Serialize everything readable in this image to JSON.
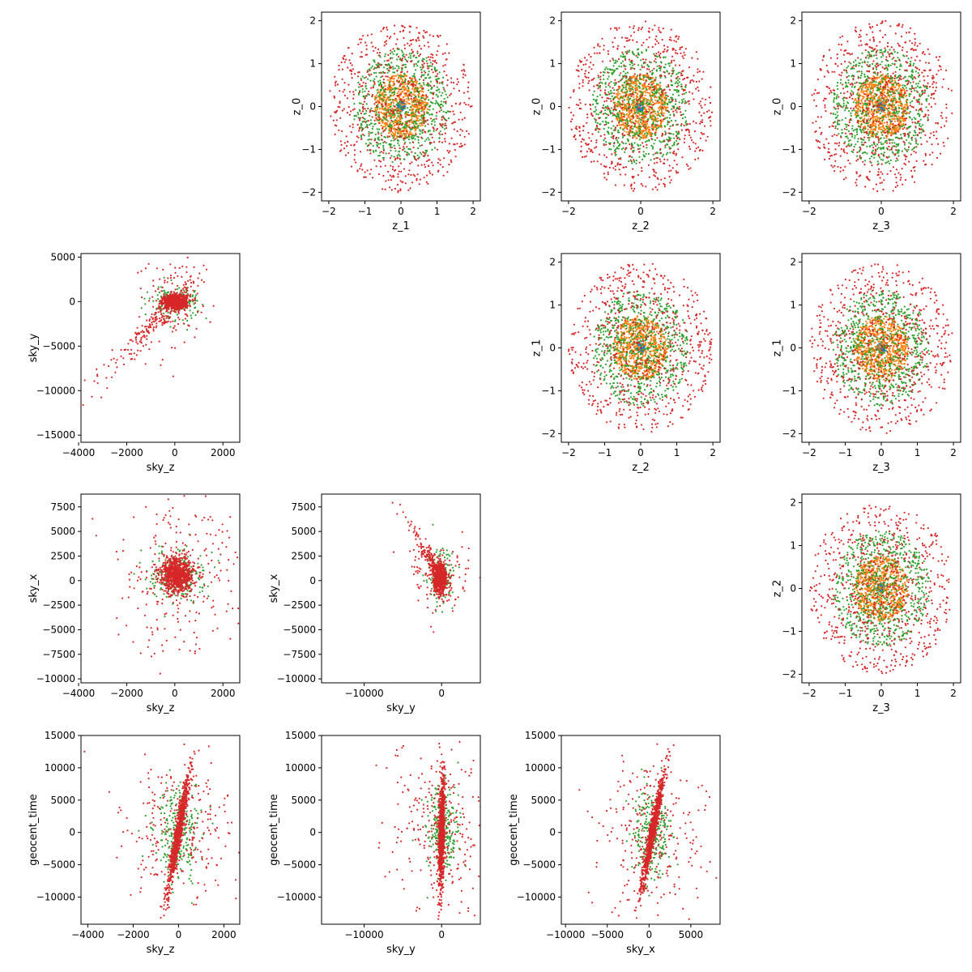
{
  "colors": {
    "blue": "#1f77b4",
    "orange": "#ff7f0e",
    "green": "#2ca02c",
    "red": "#d62728"
  },
  "chart_data": [
    {
      "id": "z1_z0",
      "type": "scatter",
      "xlabel": "z_1",
      "ylabel": "z_0",
      "xlim": [
        -2.2,
        2.2
      ],
      "ylim": [
        -2.2,
        2.2
      ],
      "xticks": [
        -2,
        -1,
        0,
        1,
        2
      ],
      "yticks": [
        -2,
        -1,
        0,
        1,
        2
      ],
      "xticklabels": [
        "−2",
        "−1",
        "0",
        "1",
        "2"
      ],
      "yticklabels": [
        "−2",
        "−1",
        "0",
        "1",
        "2"
      ],
      "gen": "rings",
      "grid": false
    },
    {
      "id": "z2_z0",
      "type": "scatter",
      "xlabel": "z_2",
      "ylabel": "z_0",
      "xlim": [
        -2.2,
        2.2
      ],
      "ylim": [
        -2.2,
        2.2
      ],
      "xticks": [
        -2,
        0,
        2
      ],
      "yticks": [
        -2,
        -1,
        0,
        1,
        2
      ],
      "xticklabels": [
        "−2",
        "0",
        "2"
      ],
      "yticklabels": [
        "−2",
        "−1",
        "0",
        "1",
        "2"
      ],
      "gen": "rings",
      "grid": false
    },
    {
      "id": "z3_z0",
      "type": "scatter",
      "xlabel": "z_3",
      "ylabel": "z_0",
      "xlim": [
        -2.2,
        2.2
      ],
      "ylim": [
        -2.2,
        2.2
      ],
      "xticks": [
        -2,
        0,
        2
      ],
      "yticks": [
        -2,
        -1,
        0,
        1,
        2
      ],
      "xticklabels": [
        "−2",
        "0",
        "2"
      ],
      "yticklabels": [
        "−2",
        "−1",
        "0",
        "1",
        "2"
      ],
      "gen": "rings",
      "grid": false
    },
    {
      "id": "skyz_skyy",
      "type": "scatter",
      "xlabel": "sky_z",
      "ylabel": "sky_y",
      "xlim": [
        -3900,
        2700
      ],
      "ylim": [
        -15800,
        5400
      ],
      "xticks": [
        -4000,
        -2000,
        0,
        2000
      ],
      "yticks": [
        -15000,
        -10000,
        -5000,
        0,
        5000
      ],
      "xticklabels": [
        "−4000",
        "−2000",
        "0",
        "2000"
      ],
      "yticklabels": [
        "−15000",
        "−10000",
        "−5000",
        "0",
        "5000"
      ],
      "gen": "corr",
      "params": {
        "cx": 0,
        "cy": 0,
        "sx": 250,
        "sy": 400,
        "ax": 0.6,
        "ay": 1.8,
        "ts": 4.2,
        "wide": [
          700,
          3000
        ],
        "gx": 500,
        "gy": 900
      },
      "grid": false
    },
    {
      "id": "z2_z1",
      "type": "scatter",
      "xlabel": "z_2",
      "ylabel": "z_1",
      "xlim": [
        -2.2,
        2.2
      ],
      "ylim": [
        -2.2,
        2.2
      ],
      "xticks": [
        -2,
        -1,
        0,
        1,
        2
      ],
      "yticks": [
        -2,
        -1,
        0,
        1,
        2
      ],
      "xticklabels": [
        "−2",
        "−1",
        "0",
        "1",
        "2"
      ],
      "yticklabels": [
        "−2",
        "−1",
        "0",
        "1",
        "2"
      ],
      "gen": "rings",
      "grid": false
    },
    {
      "id": "z3_z1",
      "type": "scatter",
      "xlabel": "z_3",
      "ylabel": "z_1",
      "xlim": [
        -2.2,
        2.2
      ],
      "ylim": [
        -2.2,
        2.2
      ],
      "xticks": [
        -2,
        -1,
        0,
        1,
        2
      ],
      "yticks": [
        -2,
        -1,
        0,
        1,
        2
      ],
      "xticklabels": [
        "−2",
        "−1",
        "0",
        "1",
        "2"
      ],
      "yticklabels": [
        "−2",
        "−1",
        "0",
        "1",
        "2"
      ],
      "gen": "rings",
      "grid": false
    },
    {
      "id": "skyz_skyx",
      "type": "scatter",
      "xlabel": "sky_z",
      "ylabel": "sky_x",
      "xlim": [
        -3900,
        2700
      ],
      "ylim": [
        -10400,
        8800
      ],
      "xticks": [
        -4000,
        -2000,
        0,
        2000
      ],
      "yticks": [
        -10000,
        -7500,
        -5000,
        -2500,
        0,
        2500,
        5000,
        7500
      ],
      "xticklabels": [
        "−4000",
        "−2000",
        "0",
        "2000"
      ],
      "yticklabels": [
        "−10000",
        "−7500",
        "−5000",
        "−2500",
        "0",
        "2500",
        "5000",
        "7500"
      ],
      "gen": "blob",
      "params": {
        "cx": 100,
        "cy": 600,
        "sx": 350,
        "sy": 900,
        "wide": [
          1300,
          4200
        ],
        "gx": 550,
        "gy": 1300
      },
      "grid": false
    },
    {
      "id": "skyy_skyx",
      "type": "scatter",
      "xlabel": "sky_y",
      "ylabel": "sky_x",
      "xlim": [
        -15500,
        5000
      ],
      "ylim": [
        -10400,
        8800
      ],
      "xticks": [
        -10000,
        0
      ],
      "yticks": [
        -10000,
        -7500,
        -5000,
        -2500,
        0,
        2500,
        5000,
        7500
      ],
      "xticklabels": [
        "−10000",
        "0"
      ],
      "yticklabels": [
        "−10000",
        "−7500",
        "−5000",
        "−2500",
        "0",
        "2500",
        "5000",
        "7500"
      ],
      "gen": "corr",
      "params": {
        "cx": -200,
        "cy": 300,
        "sx": 400,
        "sy": 700,
        "ax": 1.0,
        "ay": -1.4,
        "ts": 4.0,
        "wide": [
          2000,
          1800
        ],
        "gx": 800,
        "gy": 1400
      },
      "grid": false
    },
    {
      "id": "z3_z2",
      "type": "scatter",
      "xlabel": "z_3",
      "ylabel": "z_2",
      "xlim": [
        -2.2,
        2.2
      ],
      "ylim": [
        -2.2,
        2.2
      ],
      "xticks": [
        -2,
        -1,
        0,
        1,
        2
      ],
      "yticks": [
        -2,
        -1,
        0,
        1,
        2
      ],
      "xticklabels": [
        "−2",
        "−1",
        "0",
        "1",
        "2"
      ],
      "yticklabels": [
        "−2",
        "−1",
        "0",
        "1",
        "2"
      ],
      "gen": "rings",
      "grid": false
    },
    {
      "id": "skyz_geocent",
      "type": "scatter",
      "xlabel": "sky_z",
      "ylabel": "geocent_time",
      "xlim": [
        -4300,
        2700
      ],
      "ylim": [
        -14200,
        15000
      ],
      "xticks": [
        -4000,
        -2000,
        0,
        2000
      ],
      "yticks": [
        -10000,
        -5000,
        0,
        5000,
        10000,
        15000
      ],
      "xticklabels": [
        "−4000",
        "−2000",
        "0",
        "2000"
      ],
      "yticklabels": [
        "−10000",
        "−5000",
        "0",
        "5000",
        "10000",
        "15000"
      ],
      "gen": "streak",
      "params": {
        "cx": 0,
        "cy": 0,
        "slope": 0.05,
        "sx": 80,
        "sy": 4500,
        "wide": [
          1200,
          6000
        ],
        "gx": 500,
        "gy": 3500
      },
      "grid": false
    },
    {
      "id": "skyy_geocent",
      "type": "scatter",
      "xlabel": "sky_y",
      "ylabel": "geocent_time",
      "xlim": [
        -15500,
        5000
      ],
      "ylim": [
        -14200,
        15000
      ],
      "xticks": [
        -10000,
        0
      ],
      "yticks": [
        -10000,
        -5000,
        0,
        5000,
        10000,
        15000
      ],
      "xticklabels": [
        "−10000",
        "0"
      ],
      "yticklabels": [
        "−10000",
        "−5000",
        "0",
        "5000",
        "10000",
        "15000"
      ],
      "gen": "streak",
      "params": {
        "cx": 0,
        "cy": 0,
        "slope": 0.02,
        "sx": 200,
        "sy": 4500,
        "wide": [
          3500,
          6000
        ],
        "gx": 1000,
        "gy": 3500
      },
      "grid": false
    },
    {
      "id": "skyx_geocent",
      "type": "scatter",
      "xlabel": "sky_x",
      "ylabel": "geocent_time",
      "xlim": [
        -10500,
        8500
      ],
      "ylim": [
        -14200,
        15000
      ],
      "xticks": [
        -10000,
        -5000,
        0,
        5000
      ],
      "yticks": [
        -10000,
        -5000,
        0,
        5000,
        10000,
        15000
      ],
      "xticklabels": [
        "−10000",
        "−5000",
        "0",
        "5000"
      ],
      "yticklabels": [
        "−10000",
        "−5000",
        "0",
        "5000",
        "10000",
        "15000"
      ],
      "gen": "streak",
      "params": {
        "cx": 400,
        "cy": 0,
        "slope": 0.15,
        "sx": 200,
        "sy": 4500,
        "wide": [
          3500,
          6000
        ],
        "gx": 1100,
        "gy": 3500
      },
      "grid": false
    }
  ]
}
